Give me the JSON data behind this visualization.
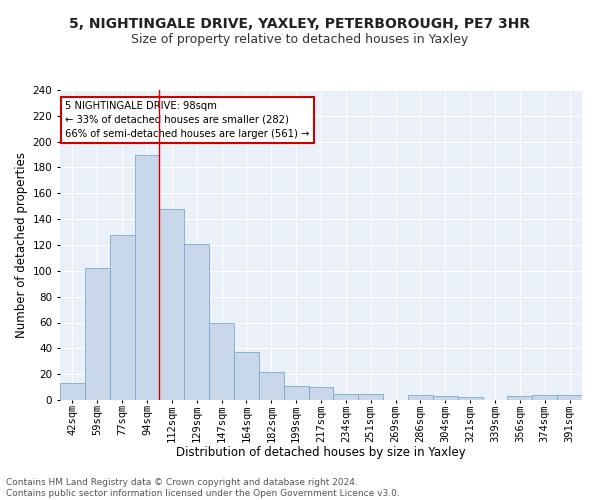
{
  "title1": "5, NIGHTINGALE DRIVE, YAXLEY, PETERBOROUGH, PE7 3HR",
  "title2": "Size of property relative to detached houses in Yaxley",
  "xlabel": "Distribution of detached houses by size in Yaxley",
  "ylabel": "Number of detached properties",
  "footnote": "Contains HM Land Registry data © Crown copyright and database right 2024.\nContains public sector information licensed under the Open Government Licence v3.0.",
  "bar_labels": [
    "42sqm",
    "59sqm",
    "77sqm",
    "94sqm",
    "112sqm",
    "129sqm",
    "147sqm",
    "164sqm",
    "182sqm",
    "199sqm",
    "217sqm",
    "234sqm",
    "251sqm",
    "269sqm",
    "286sqm",
    "304sqm",
    "321sqm",
    "339sqm",
    "356sqm",
    "374sqm",
    "391sqm"
  ],
  "bar_values": [
    13,
    102,
    128,
    190,
    148,
    121,
    60,
    37,
    22,
    11,
    10,
    5,
    5,
    0,
    4,
    3,
    2,
    0,
    3,
    4,
    4
  ],
  "bar_color": "#c8d8ea",
  "bar_edge_color": "#7aaac8",
  "vline_x_idx": 3,
  "vline_color": "#cc0000",
  "annotation_text": "5 NIGHTINGALE DRIVE: 98sqm\n← 33% of detached houses are smaller (282)\n66% of semi-detached houses are larger (561) →",
  "annotation_box_color": "#ffffff",
  "annotation_border_color": "#cc0000",
  "ylim": [
    0,
    240
  ],
  "yticks": [
    0,
    20,
    40,
    60,
    80,
    100,
    120,
    140,
    160,
    180,
    200,
    220,
    240
  ],
  "background_color": "#eaf0f8",
  "grid_color": "#ffffff",
  "title1_fontsize": 10,
  "title2_fontsize": 9,
  "xlabel_fontsize": 8.5,
  "ylabel_fontsize": 8.5,
  "tick_fontsize": 7.5,
  "footnote_fontsize": 6.5
}
